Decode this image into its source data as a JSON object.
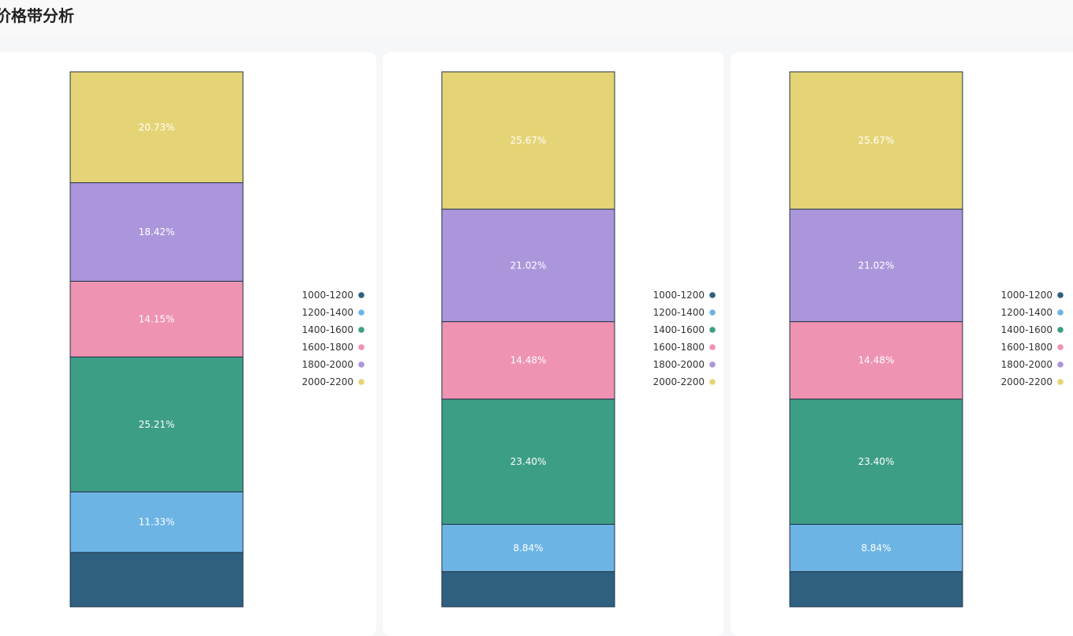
{
  "page": {
    "title": "价格带分析"
  },
  "legend_items": [
    "1000-1200",
    "1200-1400",
    "1400-1600",
    "1600-1800",
    "1800-2000",
    "2000-2200"
  ],
  "colors": {
    "1000-1200": "#2f6080",
    "1200-1400": "#6cb4e4",
    "1400-1600": "#3d9e86",
    "1600-1800": "#ee93b1",
    "1800-2000": "#ab96dc",
    "2000-2200": "#e5d475"
  },
  "chart_data": [
    {
      "type": "bar",
      "stacked": true,
      "categories": [
        "1000-1200",
        "1200-1400",
        "1400-1600",
        "1600-1800",
        "1800-2000",
        "2000-2200"
      ],
      "values": [
        10.16,
        11.33,
        25.21,
        14.15,
        18.42,
        20.73
      ],
      "labels": [
        "",
        "11.33%",
        "25.21%",
        "14.15%",
        "18.42%",
        "20.73%"
      ],
      "ylim": [
        0,
        100
      ],
      "legend": "right"
    },
    {
      "type": "bar",
      "stacked": true,
      "categories": [
        "1000-1200",
        "1200-1400",
        "1400-1600",
        "1600-1800",
        "1800-2000",
        "2000-2200"
      ],
      "values": [
        6.58,
        8.84,
        23.4,
        14.48,
        21.02,
        25.67
      ],
      "labels": [
        "",
        "8.84%",
        "23.40%",
        "14.48%",
        "21.02%",
        "25.67%"
      ],
      "ylim": [
        0,
        100
      ],
      "legend": "right"
    },
    {
      "type": "bar",
      "stacked": true,
      "categories": [
        "1000-1200",
        "1200-1400",
        "1400-1600",
        "1600-1800",
        "1800-2000",
        "2000-2200"
      ],
      "values": [
        6.58,
        8.84,
        23.4,
        14.48,
        21.02,
        25.67
      ],
      "labels": [
        "",
        "8.84%",
        "23.40%",
        "14.48%",
        "21.02%",
        "25.67%"
      ],
      "ylim": [
        0,
        100
      ],
      "legend": "right"
    }
  ]
}
